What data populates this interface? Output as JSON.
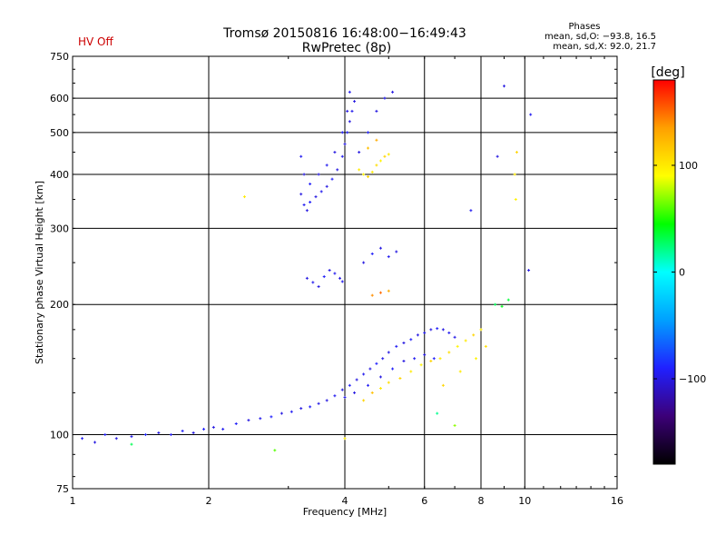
{
  "chart_data": {
    "type": "scatter",
    "title": "Tromsø 20150816 16:48:00−16:49:43",
    "subtitle": "RwPretec (8p)",
    "status": "HV Off",
    "phase_stats": {
      "heading": "Phases",
      "line1": "mean, sd,O: −93.8, 16.5",
      "line2": "mean, sd,X:  92.0, 21.7"
    },
    "xlabel": "Frequency [MHz]",
    "ylabel": "Stationary phase Virtual Height [km]",
    "x_scale": "log",
    "y_scale": "log",
    "xlim": [
      1,
      16
    ],
    "ylim": [
      75,
      750
    ],
    "x_ticks": [
      {
        "value": 1,
        "label": "1"
      },
      {
        "value": 2,
        "label": "2"
      },
      {
        "value": 4,
        "label": "4"
      },
      {
        "value": 6,
        "label": "6"
      },
      {
        "value": 8,
        "label": "8"
      },
      {
        "value": 10,
        "label": "10"
      },
      {
        "value": 16,
        "label": "16"
      }
    ],
    "y_ticks": [
      {
        "value": 75,
        "label": "75"
      },
      {
        "value": 100,
        "label": "100"
      },
      {
        "value": 200,
        "label": "200"
      },
      {
        "value": 300,
        "label": "300"
      },
      {
        "value": 400,
        "label": "400"
      },
      {
        "value": 500,
        "label": "500"
      },
      {
        "value": 600,
        "label": "600"
      },
      {
        "value": 750,
        "label": "750"
      }
    ],
    "x_gridlines": [
      2,
      4,
      6,
      8,
      10
    ],
    "y_gridlines": [
      100,
      200,
      300,
      400,
      500,
      600
    ],
    "colorbar": {
      "label": "[deg]",
      "min": -180,
      "max": 180,
      "ticks": [
        {
          "value": 100,
          "label": "100"
        },
        {
          "value": 0,
          "label": "0"
        },
        {
          "value": -100,
          "label": "−100"
        }
      ],
      "stops": [
        "#000000",
        "#3c0078",
        "#2020ff",
        "#00a0ff",
        "#00ffff",
        "#00ff00",
        "#ffff00",
        "#ffa000",
        "#ff0000"
      ]
    },
    "series": [
      {
        "values": [
          [
            1.05,
            98,
            -95
          ],
          [
            1.12,
            96,
            -100
          ],
          [
            1.18,
            100,
            -92
          ],
          [
            1.25,
            98,
            -100
          ],
          [
            1.35,
            99,
            -96
          ],
          [
            1.45,
            100,
            -88
          ],
          [
            1.55,
            101,
            -100
          ],
          [
            1.65,
            100,
            -95
          ],
          [
            1.75,
            102,
            -92
          ],
          [
            1.85,
            101,
            -100
          ],
          [
            1.95,
            103,
            -90
          ],
          [
            2.05,
            104,
            -100
          ],
          [
            2.15,
            103,
            -95
          ],
          [
            2.3,
            106,
            -92
          ],
          [
            2.45,
            108,
            -100
          ],
          [
            2.6,
            109,
            -96
          ],
          [
            2.75,
            110,
            -90
          ],
          [
            2.9,
            112,
            -100
          ],
          [
            3.05,
            113,
            -94
          ],
          [
            3.2,
            115,
            -100
          ],
          [
            3.35,
            116,
            -92
          ],
          [
            3.5,
            118,
            -98
          ],
          [
            3.65,
            120,
            -100
          ],
          [
            3.8,
            123,
            -95
          ],
          [
            3.95,
            127,
            -100
          ],
          [
            4.1,
            130,
            -92
          ],
          [
            4.25,
            134,
            -100
          ],
          [
            4.4,
            138,
            -96
          ],
          [
            4.55,
            142,
            -100
          ],
          [
            4.7,
            146,
            -90
          ],
          [
            4.85,
            150,
            -98
          ],
          [
            5.0,
            155,
            -100
          ],
          [
            5.2,
            160,
            -94
          ],
          [
            5.4,
            163,
            -100
          ],
          [
            5.6,
            166,
            -92
          ],
          [
            5.8,
            170,
            -100
          ],
          [
            6.0,
            172,
            -96
          ],
          [
            6.2,
            175,
            -100
          ],
          [
            6.4,
            176,
            -92
          ],
          [
            6.6,
            175,
            -100
          ],
          [
            6.8,
            172,
            -95
          ],
          [
            7.0,
            168,
            -98
          ],
          [
            4.0,
            122,
            -96
          ],
          [
            4.2,
            125,
            -100
          ],
          [
            4.5,
            130,
            -94
          ],
          [
            4.8,
            136,
            -100
          ],
          [
            5.1,
            142,
            -92
          ],
          [
            5.4,
            148,
            -100
          ],
          [
            5.7,
            150,
            -95
          ],
          [
            6.0,
            153,
            -100
          ],
          [
            6.3,
            150,
            -92
          ],
          [
            3.3,
            230,
            -100
          ],
          [
            3.4,
            225,
            -95
          ],
          [
            3.5,
            220,
            -100
          ],
          [
            3.6,
            232,
            -92
          ],
          [
            3.7,
            240,
            -100
          ],
          [
            3.8,
            236,
            -95
          ],
          [
            3.9,
            230,
            -100
          ],
          [
            3.95,
            226,
            -96
          ],
          [
            4.4,
            250,
            -100
          ],
          [
            4.6,
            262,
            -92
          ],
          [
            4.8,
            270,
            -100
          ],
          [
            5.0,
            258,
            -95
          ],
          [
            5.2,
            265,
            -100
          ],
          [
            3.2,
            360,
            -100
          ],
          [
            3.25,
            340,
            -95
          ],
          [
            3.3,
            330,
            -100
          ],
          [
            3.35,
            345,
            -92
          ],
          [
            3.45,
            355,
            -100
          ],
          [
            3.55,
            365,
            -96
          ],
          [
            3.65,
            375,
            -100
          ],
          [
            3.75,
            390,
            -92
          ],
          [
            3.85,
            410,
            -100
          ],
          [
            3.95,
            440,
            -95
          ],
          [
            4.0,
            470,
            -100
          ],
          [
            4.05,
            500,
            -92
          ],
          [
            4.1,
            530,
            -100
          ],
          [
            4.15,
            560,
            -96
          ],
          [
            4.2,
            590,
            -100
          ],
          [
            3.2,
            440,
            -95
          ],
          [
            3.25,
            400,
            -100
          ],
          [
            3.35,
            380,
            -92
          ],
          [
            3.5,
            400,
            -100
          ],
          [
            3.65,
            420,
            -95
          ],
          [
            3.8,
            450,
            -100
          ],
          [
            3.95,
            500,
            -92
          ],
          [
            4.05,
            560,
            -100
          ],
          [
            4.1,
            620,
            -95
          ],
          [
            4.3,
            450,
            -100
          ],
          [
            4.5,
            500,
            -92
          ],
          [
            4.7,
            560,
            -100
          ],
          [
            4.9,
            600,
            -95
          ],
          [
            5.1,
            620,
            -100
          ],
          [
            9.0,
            640,
            -100
          ],
          [
            10.3,
            550,
            -95
          ],
          [
            8.7,
            440,
            -100
          ],
          [
            7.6,
            330,
            -95
          ],
          [
            10.2,
            240,
            -100
          ]
        ]
      },
      {
        "values": [
          [
            4.3,
            410,
            100
          ],
          [
            4.4,
            400,
            95
          ],
          [
            4.5,
            395,
            110
          ],
          [
            4.6,
            405,
            100
          ],
          [
            4.7,
            420,
            105
          ],
          [
            4.8,
            430,
            95
          ],
          [
            4.9,
            440,
            110
          ],
          [
            5.0,
            445,
            100
          ],
          [
            4.5,
            460,
            120
          ],
          [
            4.7,
            480,
            130
          ],
          [
            4.6,
            210,
            140
          ],
          [
            4.8,
            213,
            150
          ],
          [
            5.0,
            215,
            130
          ],
          [
            4.4,
            120,
            110
          ],
          [
            4.6,
            125,
            120
          ],
          [
            4.8,
            128,
            100
          ],
          [
            5.0,
            132,
            105
          ],
          [
            5.3,
            135,
            110
          ],
          [
            5.6,
            140,
            100
          ],
          [
            5.9,
            145,
            95
          ],
          [
            6.2,
            148,
            110
          ],
          [
            6.5,
            150,
            100
          ],
          [
            6.8,
            155,
            105
          ],
          [
            7.1,
            160,
            95
          ],
          [
            7.4,
            165,
            100
          ],
          [
            7.7,
            170,
            110
          ],
          [
            8.0,
            175,
            100
          ],
          [
            6.6,
            130,
            110
          ],
          [
            7.2,
            140,
            100
          ],
          [
            7.8,
            150,
            95
          ],
          [
            8.2,
            160,
            105
          ],
          [
            8.6,
            200,
            30
          ],
          [
            8.9,
            198,
            40
          ],
          [
            9.2,
            205,
            35
          ],
          [
            9.5,
            400,
            100
          ],
          [
            9.55,
            350,
            95
          ],
          [
            9.6,
            450,
            110
          ],
          [
            2.4,
            355,
            100
          ],
          [
            2.8,
            92,
            60
          ],
          [
            1.35,
            95,
            30
          ],
          [
            7.0,
            105,
            70
          ],
          [
            6.4,
            112,
            20
          ],
          [
            4.0,
            98,
            100
          ]
        ]
      }
    ]
  }
}
